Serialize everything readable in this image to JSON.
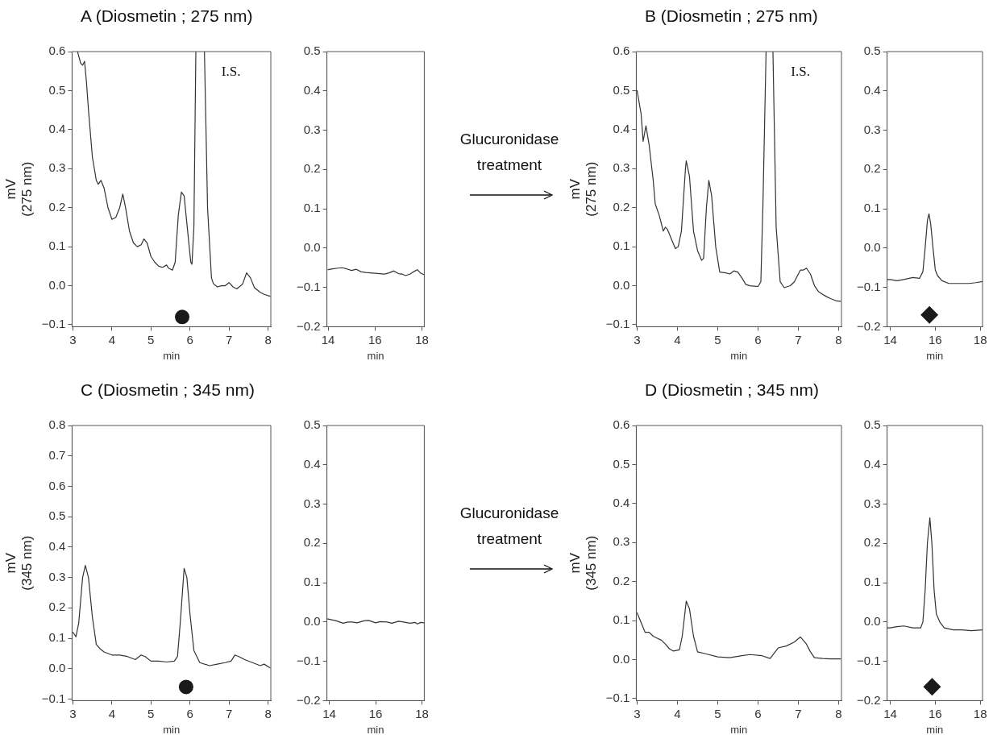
{
  "chart_data": [
    {
      "type": "line",
      "title": "A (Diosmetin ; 275 nm)",
      "xlabel": "min",
      "ylabel": "mV\n(275 nm)",
      "xlim": [
        2.98,
        8.07
      ],
      "ylim": [
        -0.105,
        0.6
      ],
      "xticks": [
        3,
        4,
        5,
        6,
        7,
        8
      ],
      "yticks": [
        {
          "value": -0.1,
          "label": "−0.1"
        },
        {
          "value": 0,
          "label": "0.0"
        },
        0.1,
        0.2,
        0.3,
        0.4,
        0.5,
        0.6
      ],
      "grid": false,
      "marker": "none",
      "annotations": [
        "I.S."
      ],
      "series": [
        {
          "type": "line",
          "color": "#333333",
          "x": [
            3.12,
            3.2,
            3.25,
            3.3,
            3.35,
            3.4,
            3.5,
            3.6,
            3.65,
            3.72,
            3.8,
            3.9,
            4.0,
            4.1,
            4.2,
            4.28,
            4.35,
            4.45,
            4.55,
            4.65,
            4.75,
            4.82,
            4.9,
            5.0,
            5.1,
            5.2,
            5.3,
            5.4,
            5.45,
            5.55,
            5.62,
            5.7,
            5.78,
            5.85,
            5.95,
            6.02,
            6.05,
            6.1,
            6.15,
            6.25,
            6.37,
            6.45,
            6.55,
            6.6,
            6.7,
            6.8,
            6.9,
            7.0,
            7.1,
            7.2,
            7.3,
            7.35,
            7.45,
            7.55,
            7.65,
            7.8,
            7.9,
            8.05
          ],
          "values": [
            0.6,
            0.57,
            0.565,
            0.575,
            0.52,
            0.45,
            0.33,
            0.27,
            0.26,
            0.27,
            0.25,
            0.2,
            0.17,
            0.175,
            0.2,
            0.235,
            0.2,
            0.14,
            0.11,
            0.1,
            0.105,
            0.12,
            0.11,
            0.075,
            0.06,
            0.05,
            0.047,
            0.053,
            0.045,
            0.04,
            0.06,
            0.18,
            0.24,
            0.23,
            0.13,
            0.06,
            0.055,
            0.15,
            0.6,
            null,
            0.6,
            0.2,
            0.02,
            0.005,
            -0.003,
            0,
            0,
            0.008,
            -0.003,
            -0.008,
            0,
            0.005,
            0.033,
            0.02,
            -0.005,
            -0.017,
            -0.022,
            -0.027
          ]
        },
        {
          "type": "scatter",
          "color": "#1a1a1a",
          "marker": "circle",
          "x": [
            5.8
          ],
          "values": [
            -0.08
          ]
        }
      ]
    },
    {
      "type": "line",
      "xlabel": "min",
      "xlim": [
        13.95,
        18.1
      ],
      "ylim": [
        -0.2,
        0.5
      ],
      "xticks": [
        14,
        16,
        18
      ],
      "yticks": [
        {
          "value": -0.2,
          "label": "−0.2"
        },
        {
          "value": -0.1,
          "label": "−0.1"
        },
        {
          "value": 0,
          "label": "0.0"
        },
        0.1,
        0.2,
        0.3,
        0.4,
        0.5
      ],
      "grid": false,
      "marker": "none",
      "annotations": [
        "Glucuronidase treatment"
      ],
      "series": [
        {
          "type": "line",
          "color": "#333333",
          "x": [
            14.0,
            14.2,
            14.4,
            14.6,
            14.8,
            15.0,
            15.2,
            15.4,
            15.6,
            15.8,
            16.0,
            16.2,
            16.4,
            16.6,
            16.8,
            17.0,
            17.15,
            17.3,
            17.5,
            17.65,
            17.8,
            17.95,
            18.1
          ],
          "values": [
            -0.055,
            -0.053,
            -0.051,
            -0.05,
            -0.053,
            -0.057,
            -0.054,
            -0.06,
            -0.062,
            -0.063,
            -0.064,
            -0.065,
            -0.066,
            -0.063,
            -0.058,
            -0.065,
            -0.066,
            -0.07,
            -0.066,
            -0.06,
            -0.055,
            -0.064,
            -0.068
          ]
        }
      ]
    },
    {
      "type": "line",
      "title": "B (Diosmetin ; 275 nm)",
      "xlabel": "min",
      "ylabel": "mV\n(275 nm)",
      "xlim": [
        2.98,
        8.07
      ],
      "ylim": [
        -0.105,
        0.6
      ],
      "xticks": [
        3,
        4,
        5,
        6,
        7,
        8
      ],
      "yticks": [
        {
          "value": -0.1,
          "label": "−0.1"
        },
        {
          "value": 0,
          "label": "0.0"
        },
        0.1,
        0.2,
        0.3,
        0.4,
        0.5,
        0.6
      ],
      "grid": false,
      "marker": "none",
      "annotations": [
        "I.S."
      ],
      "series": [
        {
          "type": "line",
          "color": "#333333",
          "x": [
            3.0,
            3.05,
            3.1,
            3.15,
            3.22,
            3.3,
            3.4,
            3.45,
            3.55,
            3.65,
            3.7,
            3.75,
            3.85,
            3.95,
            4.02,
            4.1,
            4.2,
            4.22,
            4.3,
            4.4,
            4.5,
            4.6,
            4.65,
            4.72,
            4.78,
            4.85,
            4.95,
            5.05,
            5.2,
            5.3,
            5.4,
            5.5,
            5.6,
            5.7,
            5.8,
            5.9,
            6.0,
            6.07,
            6.12,
            6.2,
            6.28,
            6.37,
            6.45,
            6.55,
            6.65,
            6.8,
            6.9,
            7.0,
            7.05,
            7.12,
            7.2,
            7.3,
            7.4,
            7.5,
            7.6,
            7.7,
            7.8,
            7.85,
            7.95,
            8.05
          ],
          "values": [
            0.5,
            0.47,
            0.44,
            0.37,
            0.41,
            0.36,
            0.27,
            0.21,
            0.18,
            0.14,
            0.15,
            0.145,
            0.12,
            0.095,
            0.1,
            0.14,
            0.3,
            0.32,
            0.28,
            0.14,
            0.09,
            0.065,
            0.07,
            0.2,
            0.27,
            0.23,
            0.1,
            0.035,
            0.033,
            0.03,
            0.038,
            0.035,
            0.02,
            0.003,
            0,
            -0.001,
            -0.002,
            0.01,
            0.2,
            0.6,
            null,
            0.6,
            0.15,
            0.01,
            -0.005,
            0,
            0.01,
            0.03,
            0.04,
            0.04,
            0.045,
            0.03,
            0,
            -0.015,
            -0.022,
            -0.028,
            -0.033,
            -0.035,
            -0.039,
            -0.04
          ]
        }
      ]
    },
    {
      "type": "line",
      "xlabel": "min",
      "xlim": [
        13.86,
        18.1
      ],
      "ylim": [
        -0.2,
        0.5
      ],
      "xticks": [
        14,
        16,
        18
      ],
      "yticks": [
        {
          "value": -0.2,
          "label": "−0.2"
        },
        {
          "value": -0.1,
          "label": "−0.1"
        },
        {
          "value": 0,
          "label": "0.0"
        },
        0.1,
        0.2,
        0.3,
        0.4,
        0.5
      ],
      "grid": false,
      "marker": "none",
      "series": [
        {
          "type": "line",
          "color": "#333333",
          "x": [
            13.86,
            14.0,
            14.3,
            14.6,
            15.0,
            15.3,
            15.45,
            15.55,
            15.65,
            15.72,
            15.8,
            15.9,
            16.0,
            16.1,
            16.3,
            16.6,
            17.0,
            17.5,
            17.8,
            18.1
          ],
          "values": [
            -0.08,
            -0.08,
            -0.083,
            -0.08,
            -0.075,
            -0.077,
            -0.06,
            0,
            0.07,
            0.087,
            0.06,
            0,
            -0.055,
            -0.07,
            -0.083,
            -0.09,
            -0.09,
            -0.09,
            -0.088,
            -0.085
          ]
        },
        {
          "type": "scatter",
          "color": "#1a1a1a",
          "marker": "diamond",
          "x": [
            15.74
          ],
          "values": [
            -0.17
          ]
        }
      ]
    },
    {
      "type": "line",
      "title": "C (Diosmetin ; 345 nm)",
      "xlabel": "min",
      "ylabel": "mV\n(345 nm)",
      "xlim": [
        2.98,
        8.07
      ],
      "ylim": [
        -0.105,
        0.8
      ],
      "xticks": [
        3,
        4,
        5,
        6,
        7,
        8
      ],
      "yticks": [
        {
          "value": -0.1,
          "label": "−0.1"
        },
        {
          "value": 0,
          "label": "0.0"
        },
        0.1,
        0.2,
        0.3,
        0.4,
        0.5,
        0.6,
        0.7,
        0.8
      ],
      "grid": false,
      "marker": "none",
      "series": [
        {
          "type": "line",
          "color": "#333333",
          "x": [
            3.0,
            3.08,
            3.15,
            3.25,
            3.32,
            3.4,
            3.5,
            3.6,
            3.7,
            3.8,
            4.0,
            4.2,
            4.4,
            4.6,
            4.75,
            4.85,
            5.0,
            5.2,
            5.4,
            5.6,
            5.68,
            5.75,
            5.85,
            5.92,
            6.0,
            6.1,
            6.25,
            6.5,
            6.7,
            6.9,
            7.05,
            7.15,
            7.25,
            7.4,
            7.6,
            7.8,
            7.9,
            8.05
          ],
          "values": [
            0.12,
            0.105,
            0.15,
            0.3,
            0.34,
            0.3,
            0.17,
            0.08,
            0.065,
            0.055,
            0.045,
            0.045,
            0.04,
            0.03,
            0.045,
            0.04,
            0.025,
            0.025,
            0.022,
            0.025,
            0.04,
            0.15,
            0.33,
            0.3,
            0.18,
            0.06,
            0.02,
            0.01,
            0.015,
            0.02,
            0.025,
            0.045,
            0.04,
            0.03,
            0.02,
            0.01,
            0.015,
            0.003
          ]
        },
        {
          "type": "scatter",
          "color": "#1a1a1a",
          "marker": "circle",
          "x": [
            5.9
          ],
          "values": [
            -0.06
          ]
        }
      ]
    },
    {
      "type": "line",
      "xlabel": "min",
      "xlim": [
        13.9,
        18.1
      ],
      "ylim": [
        -0.2,
        0.5
      ],
      "xticks": [
        14,
        16,
        18
      ],
      "yticks": [
        {
          "value": -0.2,
          "label": "−0.2"
        },
        {
          "value": -0.1,
          "label": "−0.1"
        },
        {
          "value": 0,
          "label": "0.0"
        },
        0.1,
        0.2,
        0.3,
        0.4,
        0.5
      ],
      "grid": false,
      "marker": "none",
      "annotations": [
        "Glucuronidase treatment"
      ],
      "series": [
        {
          "type": "line",
          "color": "#333333",
          "x": [
            13.9,
            14.15,
            14.3,
            14.45,
            14.6,
            14.8,
            15.0,
            15.2,
            15.5,
            15.7,
            16.0,
            16.2,
            16.5,
            16.7,
            17.0,
            17.2,
            17.5,
            17.7,
            17.8,
            17.95,
            18.1
          ],
          "values": [
            0.008,
            0.005,
            0.003,
            0.0,
            -0.003,
            0.0,
            0.0,
            -0.002,
            0.003,
            0.004,
            -0.002,
            0.001,
            0.0,
            -0.003,
            0.002,
            0.0,
            -0.003,
            -0.001,
            -0.005,
            -0.001,
            -0.002
          ]
        }
      ]
    },
    {
      "type": "line",
      "title": "D (Diosmetin ; 345 nm)",
      "xlabel": "min",
      "ylabel": "mV\n(345 nm)",
      "xlim": [
        2.98,
        8.07
      ],
      "ylim": [
        -0.105,
        0.6
      ],
      "xticks": [
        3,
        4,
        5,
        6,
        7,
        8
      ],
      "yticks": [
        {
          "value": -0.1,
          "label": "−0.1"
        },
        {
          "value": 0,
          "label": "0.0"
        },
        0.1,
        0.2,
        0.3,
        0.4,
        0.5,
        0.6
      ],
      "grid": false,
      "marker": "none",
      "series": [
        {
          "type": "line",
          "color": "#333333",
          "x": [
            3.0,
            3.1,
            3.2,
            3.3,
            3.4,
            3.5,
            3.6,
            3.7,
            3.8,
            3.9,
            4.05,
            4.12,
            4.22,
            4.3,
            4.4,
            4.5,
            4.7,
            5.0,
            5.3,
            5.6,
            5.8,
            6.1,
            6.3,
            6.5,
            6.7,
            6.9,
            7.05,
            7.2,
            7.3,
            7.4,
            7.6,
            7.8,
            8.05
          ],
          "values": [
            0.12,
            0.095,
            0.07,
            0.07,
            0.06,
            0.055,
            0.05,
            0.04,
            0.028,
            0.022,
            0.025,
            0.06,
            0.15,
            0.13,
            0.06,
            0.02,
            0.015,
            0.007,
            0.005,
            0.01,
            0.013,
            0.01,
            0.003,
            0.03,
            0.035,
            0.045,
            0.058,
            0.04,
            0.02,
            0.005,
            0.003,
            0.002,
            0.002
          ]
        }
      ]
    },
    {
      "type": "line",
      "xlabel": "min",
      "xlim": [
        13.86,
        18.1
      ],
      "ylim": [
        -0.2,
        0.5
      ],
      "xticks": [
        14,
        16,
        18
      ],
      "yticks": [
        {
          "value": -0.2,
          "label": "−0.2"
        },
        {
          "value": -0.1,
          "label": "−0.1"
        },
        {
          "value": 0,
          "label": "0.0"
        },
        0.1,
        0.2,
        0.3,
        0.4,
        0.5
      ],
      "grid": false,
      "marker": "none",
      "series": [
        {
          "type": "line",
          "color": "#333333",
          "x": [
            13.86,
            14.0,
            14.3,
            14.6,
            15.0,
            15.35,
            15.45,
            15.55,
            15.65,
            15.76,
            15.85,
            15.95,
            16.05,
            16.2,
            16.4,
            16.8,
            17.2,
            17.6,
            18.1
          ],
          "values": [
            -0.015,
            -0.015,
            -0.012,
            -0.01,
            -0.015,
            -0.015,
            0,
            0.08,
            0.2,
            0.265,
            0.2,
            0.08,
            0.02,
            0,
            -0.015,
            -0.02,
            -0.02,
            -0.022,
            -0.02
          ]
        },
        {
          "type": "scatter",
          "color": "#1a1a1a",
          "marker": "diamond",
          "x": [
            15.86
          ],
          "values": [
            -0.165
          ]
        }
      ]
    }
  ]
}
